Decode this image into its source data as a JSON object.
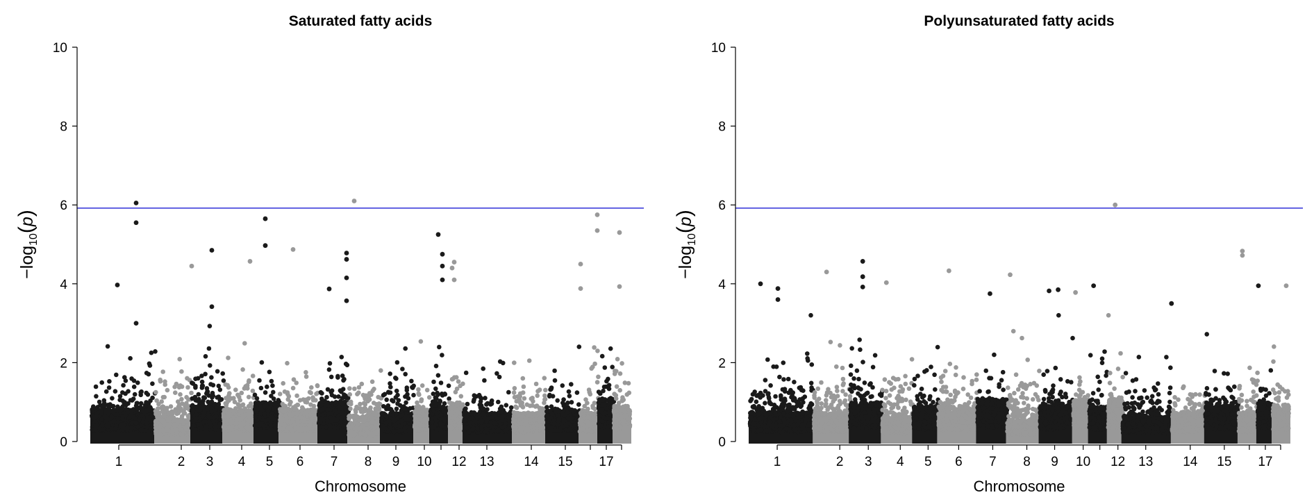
{
  "colors": {
    "dark": "#1a1a1a",
    "light": "#999999",
    "threshold": "#2f2fd8",
    "axis": "#000000"
  },
  "chart_data": [
    {
      "type": "scatter",
      "subtype": "manhattan",
      "title": "Saturated fatty acids",
      "xlabel": "Chromosome",
      "ylabel": {
        "prefix": "−log",
        "sub": "10",
        "open": "(",
        "var": "p",
        "close": ")"
      },
      "ylim": [
        0,
        10
      ],
      "yticks": [
        "0",
        "2",
        "4",
        "6",
        "8",
        "10"
      ],
      "threshold": 5.92,
      "xlim": [
        -21,
        795
      ],
      "chromosomes": [
        {
          "label": "1",
          "start": 0,
          "end": 92,
          "tick": 39,
          "base": 0.9,
          "tail": 0.85
        },
        {
          "label": "2",
          "start": 92,
          "end": 144,
          "tick": 129,
          "base": 0.6,
          "tail": 0.8
        },
        {
          "label": "3",
          "start": 144,
          "end": 190,
          "tick": 170,
          "base": 1.0,
          "tail": 0.85
        },
        {
          "label": "4",
          "start": 190,
          "end": 235,
          "tick": 216,
          "base": 0.9,
          "tail": 0.85
        },
        {
          "label": "5",
          "start": 235,
          "end": 271,
          "tick": 256,
          "base": 1.1,
          "tail": 0.8
        },
        {
          "label": "6",
          "start": 271,
          "end": 327,
          "tick": 300,
          "base": 0.9,
          "tail": 0.8
        },
        {
          "label": "7",
          "start": 327,
          "end": 370,
          "tick": 349,
          "base": 1.1,
          "tail": 0.9
        },
        {
          "label": "8",
          "start": 370,
          "end": 417,
          "tick": 398,
          "base": 0.5,
          "tail": 0.8
        },
        {
          "label": "9",
          "start": 417,
          "end": 465,
          "tick": 438,
          "base": 0.8,
          "tail": 0.8
        },
        {
          "label": "10",
          "start": 465,
          "end": 488,
          "tick": 479,
          "base": 0.9,
          "tail": 0.8
        },
        {
          "label": "",
          "start": 488,
          "end": 515,
          "tick": 503,
          "base": 1.0,
          "tail": 0.85
        },
        {
          "label": "12",
          "start": 515,
          "end": 536,
          "tick": 529,
          "base": 1.1,
          "tail": 0.85
        },
        {
          "label": "13",
          "start": 536,
          "end": 607,
          "tick": 569,
          "base": 0.8,
          "tail": 0.65
        },
        {
          "label": "14",
          "start": 607,
          "end": 655,
          "tick": 633,
          "base": 0.8,
          "tail": 0.7
        },
        {
          "label": "15",
          "start": 655,
          "end": 703,
          "tick": 682,
          "base": 0.9,
          "tail": 0.8
        },
        {
          "label": "",
          "start": 703,
          "end": 730,
          "tick": 718,
          "base": 0.8,
          "tail": 0.85
        },
        {
          "label": "17",
          "start": 730,
          "end": 752,
          "tick": 741,
          "base": 1.2,
          "tail": 0.85
        },
        {
          "label": "",
          "start": 752,
          "end": 775,
          "tick": 763,
          "base": 1.0,
          "tail": 0.85
        }
      ],
      "peaks": [
        {
          "x": 64,
          "y": 6.05
        },
        {
          "x": 64,
          "y": 5.55
        },
        {
          "x": 64,
          "y": 3.0
        },
        {
          "x": 250,
          "y": 5.65
        },
        {
          "x": 250,
          "y": 4.97
        },
        {
          "x": 378,
          "y": 6.1
        },
        {
          "x": 728,
          "y": 5.75
        },
        {
          "x": 728,
          "y": 5.35
        },
        {
          "x": 760,
          "y": 5.3
        },
        {
          "x": 760,
          "y": 3.93
        },
        {
          "x": 499,
          "y": 5.25
        },
        {
          "x": 505,
          "y": 4.75
        },
        {
          "x": 505,
          "y": 4.45
        },
        {
          "x": 505,
          "y": 4.1
        },
        {
          "x": 173,
          "y": 4.85
        },
        {
          "x": 173,
          "y": 3.42
        },
        {
          "x": 290,
          "y": 4.87
        },
        {
          "x": 367,
          "y": 4.78
        },
        {
          "x": 367,
          "y": 4.62
        },
        {
          "x": 367,
          "y": 4.15
        },
        {
          "x": 367,
          "y": 3.57
        },
        {
          "x": 522,
          "y": 4.55
        },
        {
          "x": 519,
          "y": 4.4
        },
        {
          "x": 522,
          "y": 4.1
        },
        {
          "x": 704,
          "y": 4.5
        },
        {
          "x": 704,
          "y": 3.88
        },
        {
          "x": 228,
          "y": 4.57
        },
        {
          "x": 144,
          "y": 4.45
        },
        {
          "x": 37,
          "y": 3.97
        },
        {
          "x": 342,
          "y": 3.87
        }
      ]
    },
    {
      "type": "scatter",
      "subtype": "manhattan",
      "title": "Polyunsaturated fatty acids",
      "xlabel": "Chromosome",
      "ylabel": {
        "prefix": "−log",
        "sub": "10",
        "open": "(",
        "var": "p",
        "close": ")"
      },
      "ylim": [
        0,
        10
      ],
      "yticks": [
        "0",
        "2",
        "4",
        "6",
        "8",
        "10"
      ],
      "threshold": 5.92,
      "xlim": [
        -21,
        795
      ],
      "chromosomes": [
        {
          "label": "1",
          "start": 0,
          "end": 92,
          "tick": 39,
          "base": 0.8,
          "tail": 0.9
        },
        {
          "label": "2",
          "start": 92,
          "end": 144,
          "tick": 129,
          "base": 0.8,
          "tail": 0.9
        },
        {
          "label": "3",
          "start": 144,
          "end": 190,
          "tick": 170,
          "base": 1.1,
          "tail": 0.95
        },
        {
          "label": "4",
          "start": 190,
          "end": 235,
          "tick": 216,
          "base": 0.7,
          "tail": 0.8
        },
        {
          "label": "5",
          "start": 235,
          "end": 271,
          "tick": 256,
          "base": 1.0,
          "tail": 0.85
        },
        {
          "label": "6",
          "start": 271,
          "end": 327,
          "tick": 300,
          "base": 1.0,
          "tail": 0.85
        },
        {
          "label": "7",
          "start": 327,
          "end": 370,
          "tick": 349,
          "base": 1.2,
          "tail": 0.85
        },
        {
          "label": "8",
          "start": 370,
          "end": 417,
          "tick": 398,
          "base": 0.6,
          "tail": 0.8
        },
        {
          "label": "9",
          "start": 417,
          "end": 465,
          "tick": 438,
          "base": 1.0,
          "tail": 0.9
        },
        {
          "label": "10",
          "start": 465,
          "end": 488,
          "tick": 479,
          "base": 1.2,
          "tail": 0.85
        },
        {
          "label": "",
          "start": 488,
          "end": 515,
          "tick": 503,
          "base": 1.0,
          "tail": 0.85
        },
        {
          "label": "12",
          "start": 515,
          "end": 536,
          "tick": 529,
          "base": 1.2,
          "tail": 0.85
        },
        {
          "label": "13",
          "start": 536,
          "end": 607,
          "tick": 569,
          "base": 0.7,
          "tail": 0.75
        },
        {
          "label": "14",
          "start": 607,
          "end": 655,
          "tick": 633,
          "base": 0.8,
          "tail": 0.75
        },
        {
          "label": "15",
          "start": 655,
          "end": 703,
          "tick": 682,
          "base": 1.0,
          "tail": 0.85
        },
        {
          "label": "",
          "start": 703,
          "end": 730,
          "tick": 718,
          "base": 0.8,
          "tail": 0.85
        },
        {
          "label": "17",
          "start": 730,
          "end": 752,
          "tick": 741,
          "base": 1.1,
          "tail": 0.85
        },
        {
          "label": "",
          "start": 752,
          "end": 775,
          "tick": 763,
          "base": 1.0,
          "tail": 0.85
        }
      ],
      "peaks": [
        {
          "x": 525,
          "y": 6.0
        },
        {
          "x": 708,
          "y": 4.83
        },
        {
          "x": 708,
          "y": 4.72
        },
        {
          "x": 162,
          "y": 4.57
        },
        {
          "x": 162,
          "y": 4.18
        },
        {
          "x": 162,
          "y": 3.92
        },
        {
          "x": 286,
          "y": 4.33
        },
        {
          "x": 110,
          "y": 4.3
        },
        {
          "x": 374,
          "y": 4.23
        },
        {
          "x": 15,
          "y": 4.0
        },
        {
          "x": 40,
          "y": 3.88
        },
        {
          "x": 40,
          "y": 3.6
        },
        {
          "x": 494,
          "y": 3.95
        },
        {
          "x": 771,
          "y": 3.95
        },
        {
          "x": 731,
          "y": 3.95
        },
        {
          "x": 443,
          "y": 3.85
        },
        {
          "x": 430,
          "y": 3.82
        },
        {
          "x": 345,
          "y": 3.75
        },
        {
          "x": 196,
          "y": 4.03
        },
        {
          "x": 606,
          "y": 3.5
        },
        {
          "x": 468,
          "y": 3.78
        }
      ]
    }
  ]
}
